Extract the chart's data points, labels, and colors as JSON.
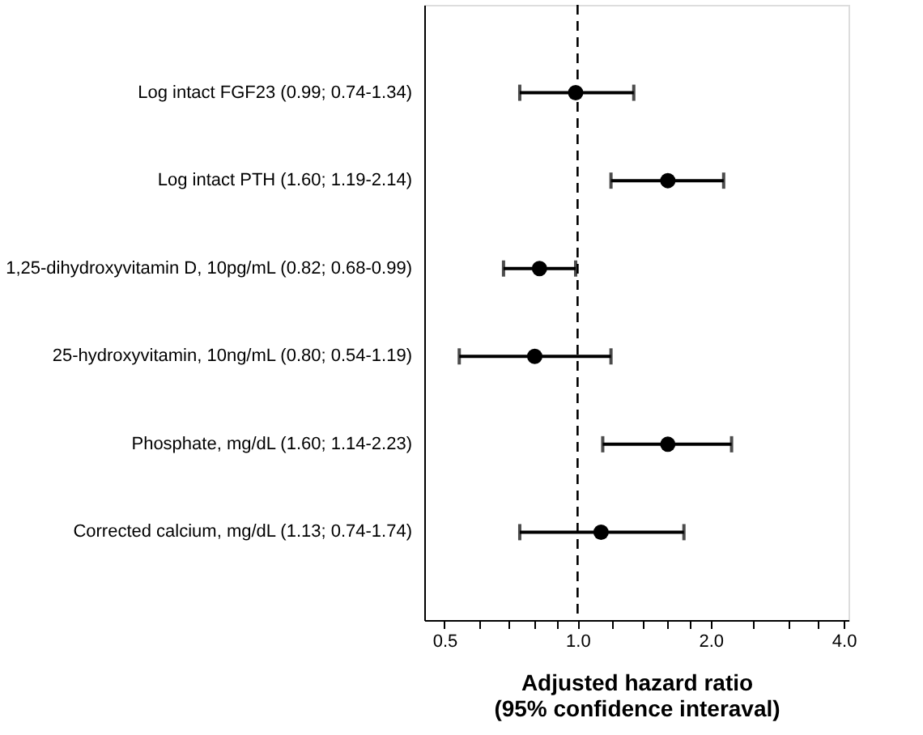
{
  "chart_data": {
    "type": "scatter",
    "orientation": "horizontal",
    "categories": [
      "Log intact FGF23 (0.99; 0.74-1.34)",
      "Log intact PTH (1.60; 1.19-2.14)",
      "1,25-dihydroxyvitamin D, 10pg/mL (0.82; 0.68-0.99)",
      "25-hydroxyvitamin, 10ng/mL (0.80; 0.54-1.19)",
      "Phosphate, mg/dL (1.60; 1.14-2.23)",
      "Corrected calcium, mg/dL (1.13; 0.74-1.74)"
    ],
    "values": [
      0.99,
      1.6,
      0.82,
      0.8,
      1.6,
      1.13
    ],
    "errors": [
      [
        0.74,
        1.34
      ],
      [
        1.19,
        2.14
      ],
      [
        0.68,
        0.99
      ],
      [
        0.54,
        1.19
      ],
      [
        1.14,
        2.23
      ],
      [
        0.74,
        1.74
      ]
    ],
    "color": "#000000",
    "marker": "circle",
    "log": "x",
    "xlim": [
      0.45,
      4.1
    ],
    "xticks": [
      0.5,
      {
        "value": 0.6,
        "label": null
      },
      {
        "value": 0.7,
        "label": null
      },
      {
        "value": 0.8,
        "label": null
      },
      {
        "value": 0.9,
        "label": null
      },
      {
        "value": 1,
        "label": "1.0"
      },
      {
        "value": 1.2,
        "label": null
      },
      {
        "value": 1.4,
        "label": null
      },
      {
        "value": 1.6,
        "label": null
      },
      {
        "value": 1.8,
        "label": null
      },
      {
        "value": 2,
        "label": "2.0"
      },
      {
        "value": 2.5,
        "label": null
      },
      {
        "value": 3,
        "label": null
      },
      {
        "value": 3.5,
        "label": null
      },
      {
        "value": 4,
        "label": "4.0"
      }
    ],
    "xlabel": "Adjusted hazard ratio\n(95% confidence interaval)",
    "ref_lines": [
      {
        "axis": "x",
        "value": 1,
        "line_style": "dashed",
        "color": "#000000"
      }
    ],
    "grid": false
  }
}
